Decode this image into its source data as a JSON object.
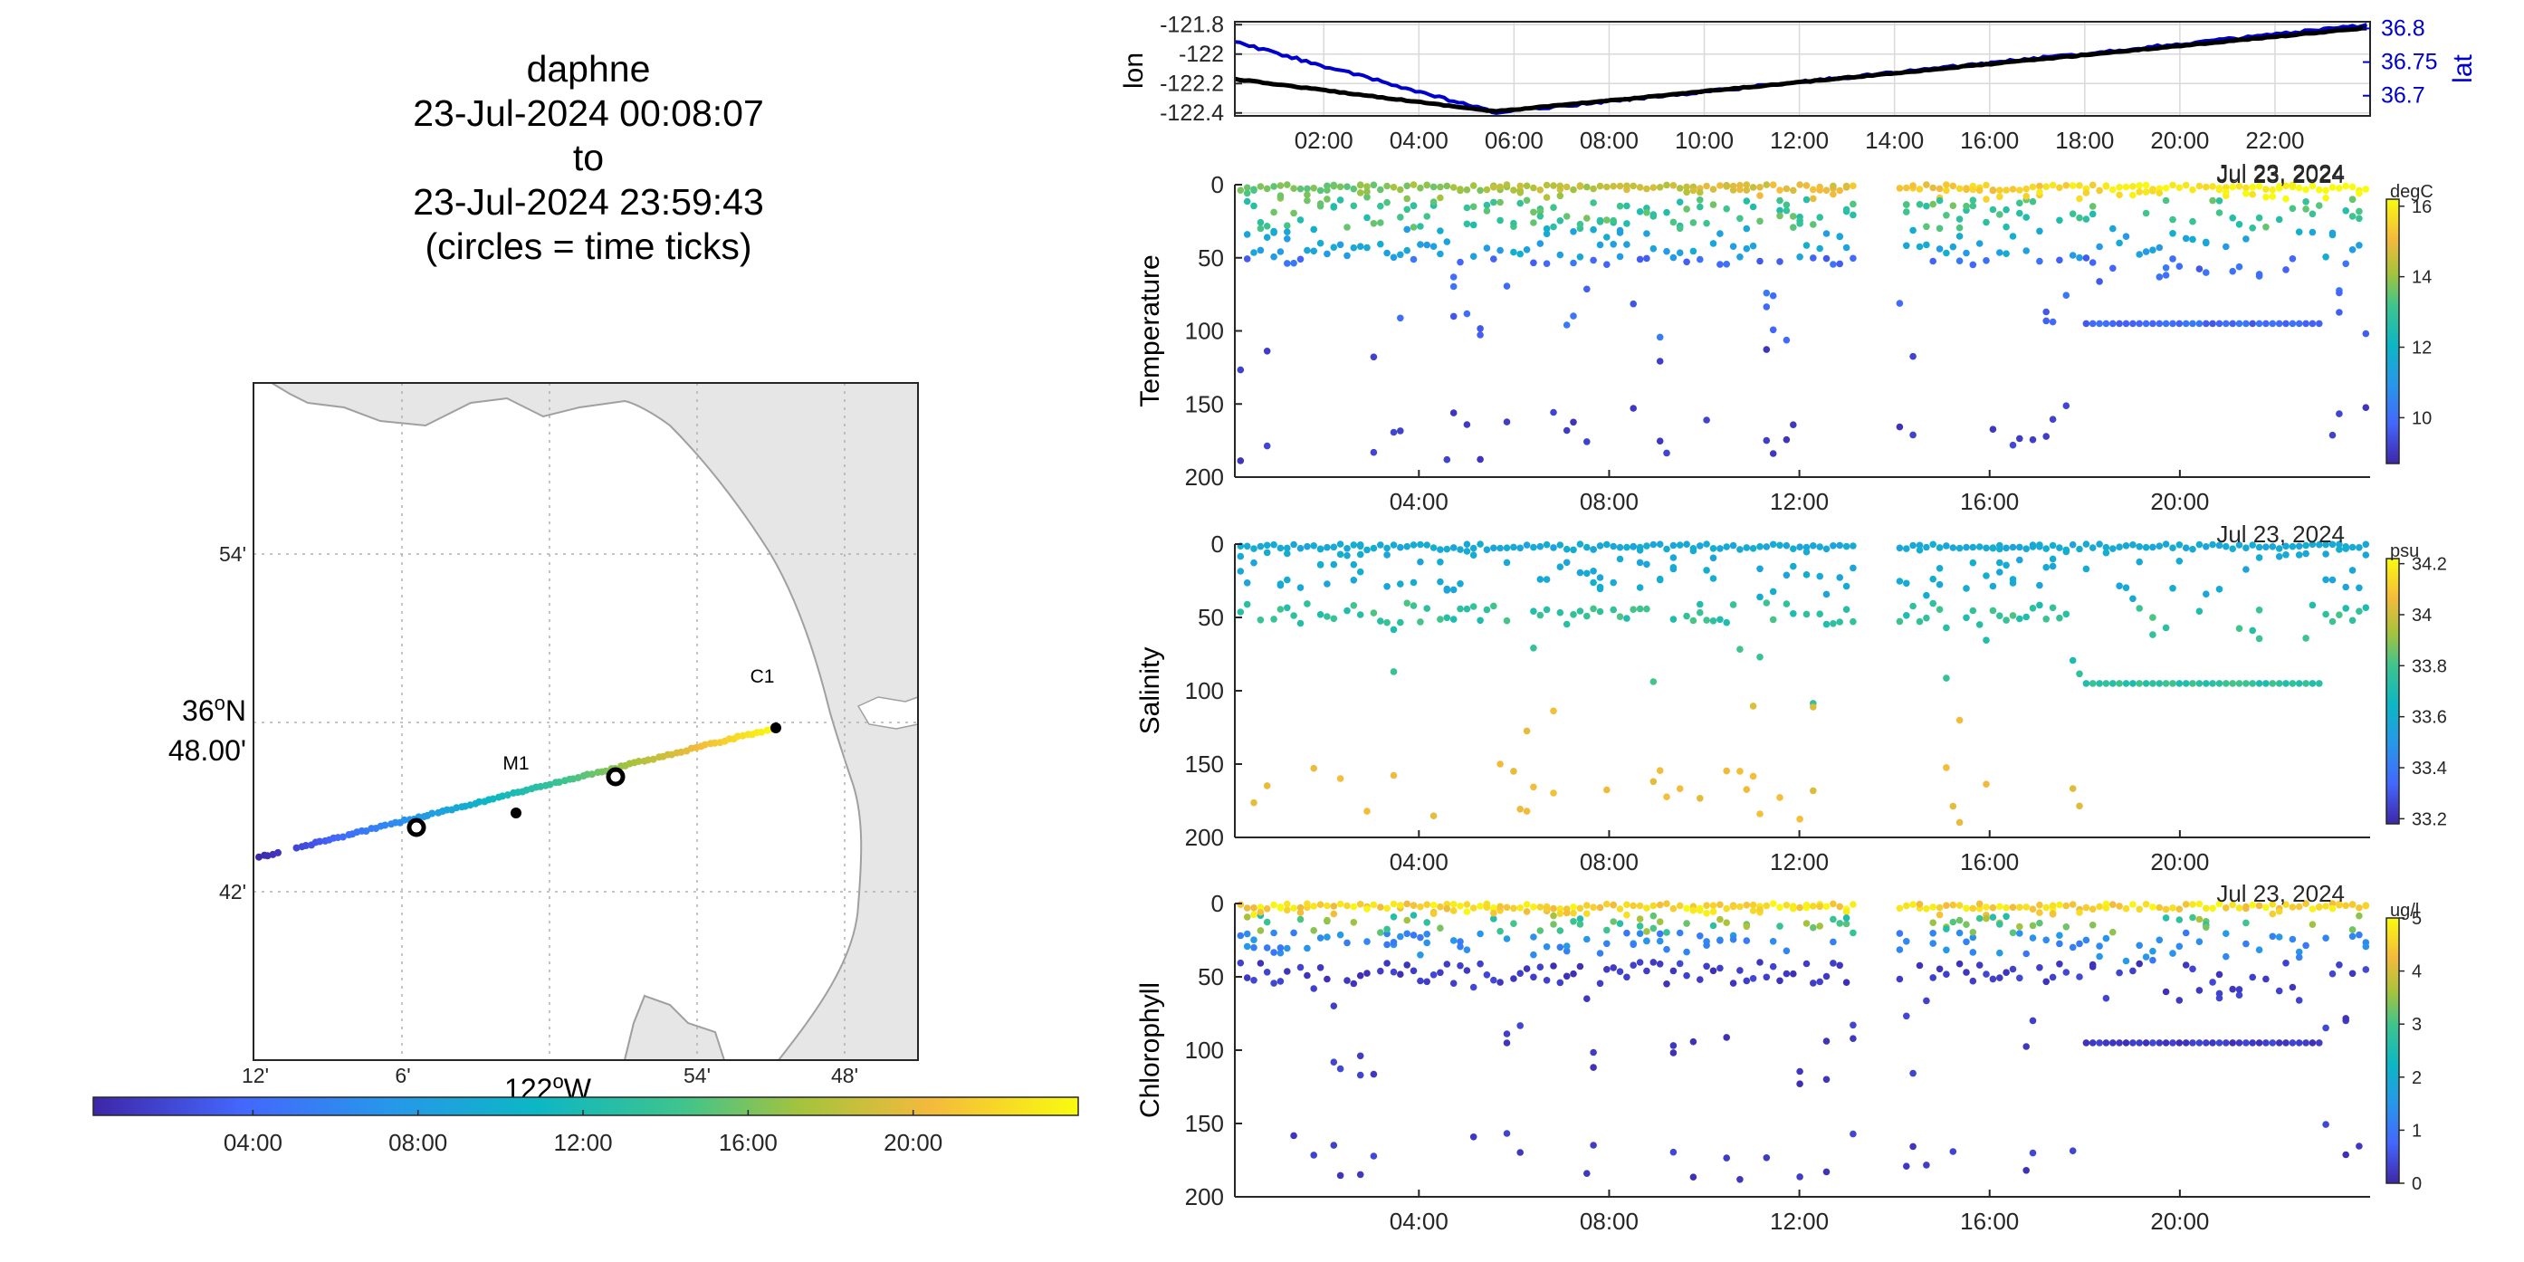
{
  "title": {
    "line1": "daphne",
    "line2": "23-Jul-2024 00:08:07",
    "line3": "to",
    "line4": "23-Jul-2024 23:59:43",
    "line5": "(circles = time ticks)"
  },
  "colors": {
    "lon_line": "#000000",
    "lat_line": "#0000cc",
    "grid": "#d9d9d9",
    "land": "#e6e6e6",
    "coast": "#a0a0a0",
    "axis": "#262626"
  },
  "chart_data": [
    {
      "type": "line",
      "panel": "position-vs-time",
      "ylabel": "lon",
      "ylabel_right": "lat",
      "ylim": [
        -122.42,
        -121.78
      ],
      "ylim_right": [
        36.67,
        36.81
      ],
      "yticks": [
        "-121.8",
        "-122",
        "-122.2",
        "-122.4"
      ],
      "yticks_right": [
        "36.8",
        "36.75",
        "36.7"
      ],
      "xticks": [
        "02:00",
        "04:00",
        "06:00",
        "08:00",
        "10:00",
        "12:00",
        "14:00",
        "16:00",
        "18:00",
        "20:00",
        "22:00"
      ],
      "xlim_hours": [
        0.13,
        24.0
      ],
      "date_label": "Jul 23, 2024",
      "series": [
        {
          "name": "lon",
          "color": "#000000",
          "x_hours": [
            0.13,
            5.6,
            24.0
          ],
          "values": [
            -122.17,
            -122.39,
            -121.82
          ]
        },
        {
          "name": "lat",
          "color": "#0000cc",
          "x_hours": [
            0.13,
            5.6,
            24.0
          ],
          "values": [
            36.78,
            36.675,
            36.805
          ]
        }
      ]
    },
    {
      "type": "scatter",
      "panel": "temperature",
      "ylabel": "Temperature",
      "ylim": [
        200,
        0
      ],
      "yticks": [
        "0",
        "50",
        "100",
        "150",
        "200"
      ],
      "xticks": [
        "04:00",
        "08:00",
        "12:00",
        "16:00",
        "20:00"
      ],
      "xlim_hours": [
        0.13,
        24.0
      ],
      "date_label": "Jul 23, 2024",
      "colorbar": {
        "label": "degC",
        "ticks": [
          "16",
          "14",
          "12",
          "10"
        ],
        "clim": [
          8.7,
          16.2
        ]
      },
      "description": "profiles from surface to about 180 m; warm surface, cold at depth"
    },
    {
      "type": "scatter",
      "panel": "salinity",
      "ylabel": "Salinity",
      "ylim": [
        200,
        0
      ],
      "yticks": [
        "0",
        "50",
        "100",
        "150",
        "200"
      ],
      "xticks": [
        "04:00",
        "08:00",
        "12:00",
        "16:00",
        "20:00"
      ],
      "xlim_hours": [
        0.13,
        24.0
      ],
      "date_label": "Jul 23, 2024",
      "colorbar": {
        "label": "psu",
        "ticks": [
          "34.2",
          "34",
          "33.8",
          "33.6",
          "33.4",
          "33.2"
        ],
        "clim": [
          33.18,
          34.22
        ]
      }
    },
    {
      "type": "scatter",
      "panel": "chlorophyll",
      "ylabel": "Chlorophyll",
      "ylim": [
        200,
        0
      ],
      "yticks": [
        "0",
        "50",
        "100",
        "150",
        "200"
      ],
      "xticks": [
        "04:00",
        "08:00",
        "12:00",
        "16:00",
        "20:00"
      ],
      "xlim_hours": [
        0.13,
        24.0
      ],
      "date_label": "Jul 23, 2024",
      "colorbar": {
        "label": "ug/l",
        "ticks": [
          "5",
          "4",
          "3",
          "2",
          "1",
          "0"
        ],
        "clim": [
          0,
          5
        ]
      }
    },
    {
      "type": "scatter",
      "panel": "map",
      "xlabel": "122°W",
      "ylabel": "36°N 48.00'",
      "xticks": [
        "12'",
        "6'",
        "54'",
        "48'"
      ],
      "yticks": [
        "54'",
        "42'"
      ],
      "stations": [
        {
          "name": "C1",
          "lon": -121.847,
          "lat": 36.797
        },
        {
          "name": "M1",
          "lon": -122.022,
          "lat": 36.747
        }
      ],
      "time_colorbar": {
        "ticks": [
          "04:00",
          "08:00",
          "12:00",
          "16:00",
          "20:00"
        ],
        "xlim_hours": [
          0.13,
          24.0
        ]
      },
      "track": [
        {
          "lon": -122.2,
          "lat": 36.718,
          "hour": 0.1
        },
        {
          "lon": -121.85,
          "lat": 36.797,
          "hour": 23.99
        }
      ]
    }
  ]
}
